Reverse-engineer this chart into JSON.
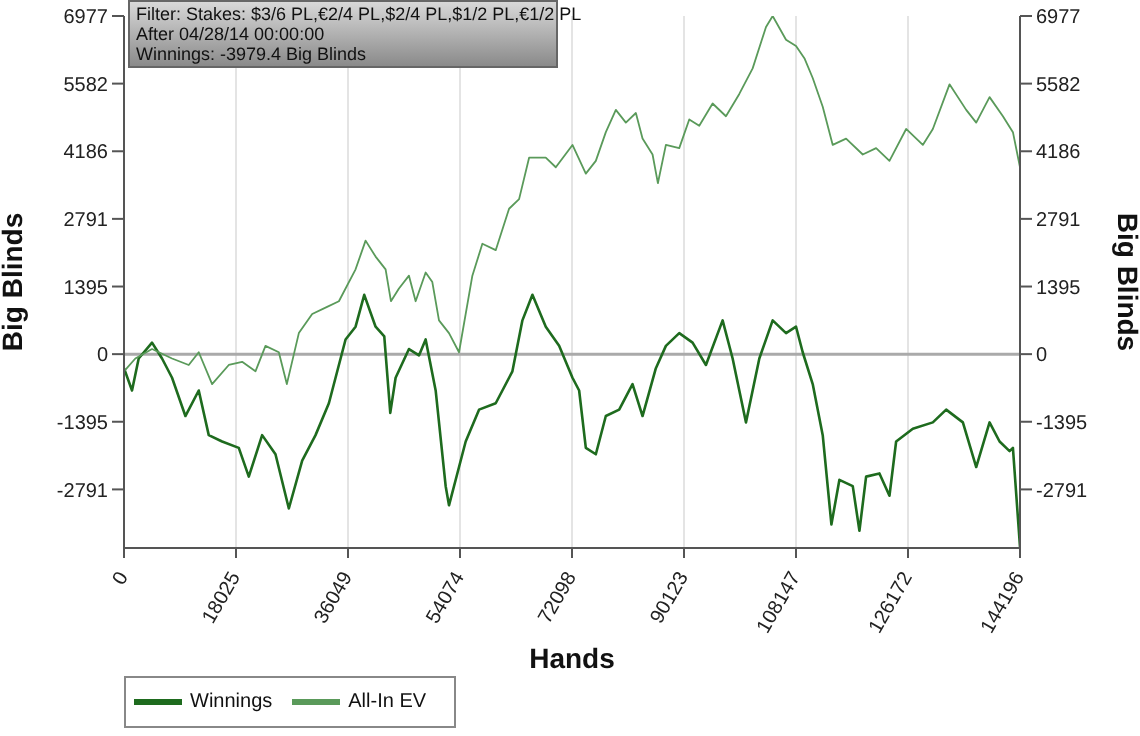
{
  "chart_data": {
    "type": "line",
    "xlabel": "Hands",
    "ylabel": "Big Blinds",
    "y2label": "Big Blinds",
    "annotations": [
      "Filter: Stakes: $3/6 PL,€2/4 PL,$2/4 PL,$1/2 PL,€1/2 PL",
      "After 04/28/14 00:00:00",
      "Winnings: -3979.4 Big Blinds"
    ],
    "xlim": [
      0,
      144196
    ],
    "xticks": [
      0,
      18025,
      36049,
      54074,
      72098,
      90123,
      108147,
      126172,
      144196
    ],
    "ylim": [
      -4000,
      6977
    ],
    "yticks": [
      -2791,
      -1395,
      0,
      1395,
      2791,
      4186,
      5582,
      6977
    ],
    "y2lim": [
      -4000,
      6977
    ],
    "y2ticks": [
      -2791,
      -1395,
      0,
      1395,
      2791,
      4186,
      5582,
      6977
    ],
    "grid": true,
    "legend": "bottom left",
    "marker": "none",
    "line_style": "solid",
    "ref_lines": [
      {
        "axis": "y",
        "value": 0,
        "color": "#aaaaaa"
      }
    ],
    "series": [
      {
        "name": "Winnings",
        "color": "#1e6b1e",
        "x": [
          0,
          1289,
          2363,
          4511,
          6122,
          7733,
          9881,
          12029,
          13640,
          15788,
          18473,
          20084,
          22232,
          24380,
          26528,
          28676,
          30824,
          32972,
          35657,
          37268,
          38664,
          40490,
          41886,
          42853,
          43712,
          45860,
          47471,
          48545,
          50156,
          51767,
          52304,
          53915,
          54989,
          57137,
          59822,
          62507,
          64118,
          65729,
          67877,
          70025,
          72174,
          73248,
          74322,
          75932,
          77543,
          79691,
          81839,
          83450,
          85597,
          87208,
          89357,
          91505,
          93653,
          96338,
          97948,
          99023,
          100097,
          102245,
          104393,
          106541,
          108152,
          109226,
          110837,
          112448,
          113844,
          115133,
          117281,
          118355,
          119429,
          121577,
          123188,
          124262,
          126947,
          130169,
          132317,
          135002,
          137150,
          139298,
          140909,
          142520,
          143057,
          144196
        ],
        "values": [
          -290,
          -750,
          -90,
          237,
          -90,
          -487,
          -1277,
          -750,
          -1671,
          -1803,
          -1934,
          -2527,
          -1671,
          -2066,
          -3185,
          -2198,
          -1671,
          -1013,
          303,
          566,
          1224,
          566,
          368,
          -1211,
          -487,
          105,
          -26,
          303,
          -750,
          -2724,
          -3119,
          -2329,
          -1803,
          -1145,
          -1013,
          -355,
          697,
          1224,
          566,
          171,
          -487,
          -750,
          -1934,
          -2066,
          -1277,
          -1145,
          -618,
          -1277,
          -290,
          171,
          434,
          237,
          -224,
          697,
          -90,
          -750,
          -1408,
          -90,
          697,
          434,
          566,
          39,
          -618,
          -1671,
          -3514,
          -2593,
          -2724,
          -3645,
          -2527,
          -2461,
          -2922,
          -1803,
          -1540,
          -1408,
          -1145,
          -1408,
          -2329,
          -1408,
          -1803,
          -2000,
          -1934,
          -3979.4
        ]
      },
      {
        "name": "All-In EV",
        "color": "#5a9a5a",
        "x": [
          0,
          1826,
          4511,
          7733,
          10418,
          12029,
          14177,
          16862,
          19010,
          21158,
          22769,
          24917,
          26206,
          28139,
          30287,
          32435,
          34583,
          37268,
          38879,
          40490,
          42101,
          42960,
          44249,
          45860,
          46934,
          48545,
          49619,
          50693,
          52304,
          53915,
          56063,
          57674,
          59822,
          61970,
          63582,
          65193,
          67877,
          69489,
          72174,
          74322,
          75932,
          77543,
          79154,
          80766,
          82377,
          83450,
          85062,
          85920,
          87208,
          89357,
          90968,
          92579,
          94727,
          96874,
          99023,
          101172,
          103320,
          104393,
          106541,
          108152,
          109548,
          110837,
          112448,
          114059,
          116207,
          118892,
          121040,
          123188,
          125873,
          128557,
          130169,
          132854,
          135539,
          137150,
          139298,
          141445,
          143057,
          144196
        ],
        "values": [
          -355,
          -90,
          105,
          -90,
          -224,
          39,
          -618,
          -224,
          -158,
          -355,
          171,
          39,
          -618,
          434,
          829,
          961,
          1092,
          1750,
          2342,
          2013,
          1750,
          1092,
          1355,
          1619,
          1092,
          1684,
          1487,
          697,
          434,
          39,
          1619,
          2277,
          2145,
          3000,
          3198,
          4053,
          4053,
          3856,
          4317,
          3724,
          3988,
          4580,
          5040,
          4778,
          4975,
          4448,
          4119,
          3527,
          4317,
          4251,
          4843,
          4711,
          5172,
          4909,
          5369,
          5896,
          6751,
          6977,
          6488,
          6356,
          6093,
          5698,
          5106,
          4317,
          4448,
          4119,
          4251,
          3988,
          4646,
          4317,
          4646,
          5567,
          5040,
          4778,
          5303,
          4909,
          4580,
          3856
        ]
      }
    ]
  }
}
